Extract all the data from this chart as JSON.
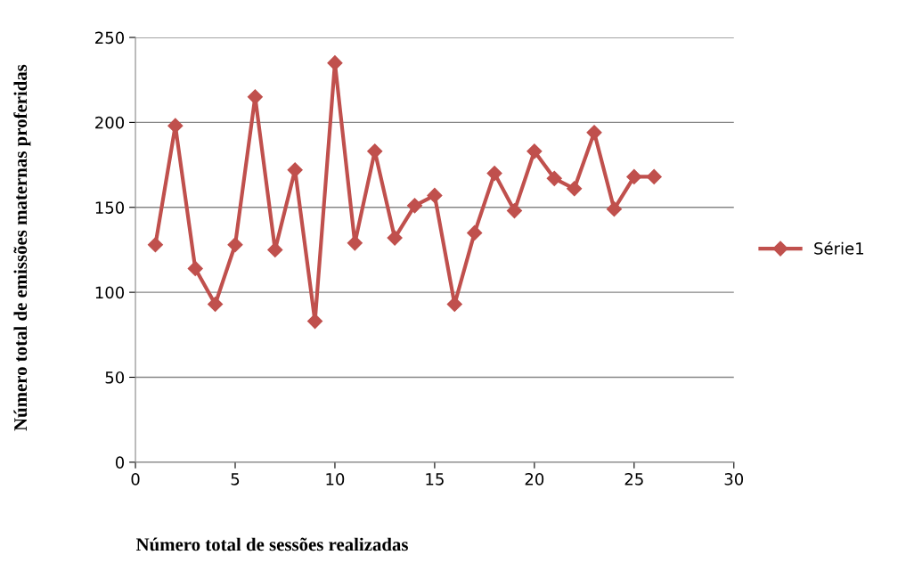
{
  "chart_data": {
    "type": "line",
    "xlabel": "Número total de sessões realizadas",
    "ylabel": "Número total de emissões maternas proferidas",
    "x": [
      1,
      2,
      3,
      4,
      5,
      6,
      7,
      8,
      9,
      10,
      11,
      12,
      13,
      14,
      15,
      16,
      17,
      18,
      19,
      20,
      21,
      22,
      23,
      24,
      25,
      26
    ],
    "series": [
      {
        "name": "Série1",
        "color": "#c0504d",
        "values": [
          128,
          198,
          114,
          93,
          128,
          215,
          125,
          172,
          83,
          235,
          129,
          183,
          132,
          151,
          157,
          93,
          135,
          170,
          148,
          183,
          167,
          161,
          194,
          149,
          168,
          168
        ]
      }
    ],
    "xlim": [
      0,
      30
    ],
    "xticks": [
      0,
      5,
      10,
      15,
      20,
      25,
      30
    ],
    "ylim": [
      0,
      250
    ],
    "yticks": [
      0,
      50,
      100,
      150,
      200,
      250
    ],
    "grid": "y",
    "legend": "right",
    "marker": "diamond",
    "line_style": "solid"
  }
}
